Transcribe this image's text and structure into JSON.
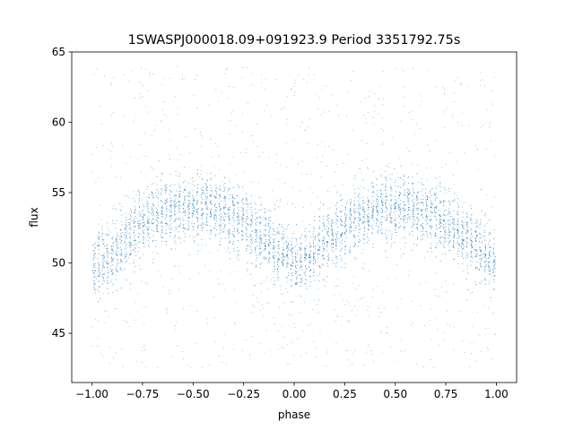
{
  "chart_data": {
    "type": "scatter",
    "title": "1SWASPJ000018.09+091923.9 Period 3351792.75s",
    "xlabel": "phase",
    "ylabel": "flux",
    "xlim": [
      -1.1,
      1.1
    ],
    "ylim": [
      41.5,
      65
    ],
    "xticks": [
      -1.0,
      -0.75,
      -0.5,
      -0.25,
      0.0,
      0.25,
      0.5,
      0.75,
      1.0
    ],
    "xtick_labels": [
      "−1.00",
      "−0.75",
      "−0.50",
      "−0.25",
      "0.00",
      "0.25",
      "0.50",
      "0.75",
      "1.00"
    ],
    "yticks": [
      45,
      50,
      55,
      60,
      65
    ],
    "ytick_labels": [
      "45",
      "50",
      "55",
      "60",
      "65"
    ],
    "grid": false,
    "marker_color": "#1f77b4",
    "series": [
      {
        "profile": {
          "phase": [
            -1.0,
            -0.9,
            -0.8,
            -0.7,
            -0.6,
            -0.5,
            -0.4,
            -0.3,
            -0.2,
            -0.1,
            0.0,
            0.1,
            0.2,
            0.3,
            0.4,
            0.5,
            0.6,
            0.7,
            0.8,
            0.9,
            1.0
          ],
          "flux": [
            49.8,
            50.5,
            52.0,
            53.3,
            53.8,
            53.9,
            53.8,
            53.2,
            52.3,
            51.2,
            49.8,
            50.5,
            52.0,
            53.3,
            53.8,
            53.9,
            53.8,
            53.2,
            52.3,
            51.2,
            49.8
          ]
        },
        "scatter_range": [
          42.5,
          64.0
        ]
      }
    ]
  }
}
